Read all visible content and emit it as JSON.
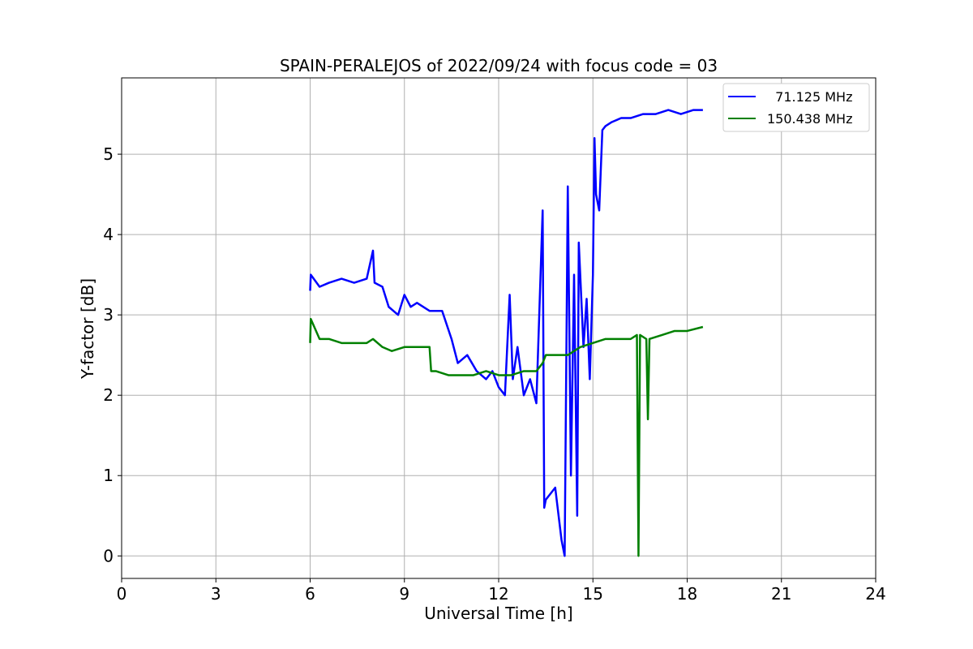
{
  "chart_data": {
    "type": "line",
    "title": "SPAIN-PERALEJOS of 2022/09/24 with focus code = 03",
    "xlabel": "Universal Time [h]",
    "ylabel": "Y-factor [dB]",
    "xlim": [
      0,
      24
    ],
    "ylim": [
      -0.28,
      5.95
    ],
    "xticks": [
      0,
      3,
      6,
      9,
      12,
      15,
      18,
      21,
      24
    ],
    "yticks": [
      0,
      1,
      2,
      3,
      4,
      5
    ],
    "grid": true,
    "legend_position": "top-right",
    "series": [
      {
        "name": "  71.125 MHz",
        "color": "#0000ff",
        "x": [
          6.0,
          6.02,
          6.3,
          6.6,
          7.0,
          7.4,
          7.8,
          8.0,
          8.05,
          8.3,
          8.5,
          8.8,
          9.0,
          9.2,
          9.4,
          9.8,
          10.2,
          10.5,
          10.7,
          11.0,
          11.3,
          11.6,
          11.8,
          12.0,
          12.2,
          12.35,
          12.45,
          12.6,
          12.8,
          13.0,
          13.2,
          13.4,
          13.45,
          13.5,
          13.6,
          13.8,
          14.0,
          14.1,
          14.2,
          14.3,
          14.4,
          14.5,
          14.55,
          14.7,
          14.8,
          14.9,
          15.0,
          15.05,
          15.1,
          15.2,
          15.3,
          15.4,
          15.6,
          15.9,
          16.2,
          16.6,
          17.0,
          17.4,
          17.8,
          18.2,
          18.5
        ],
        "y": [
          3.3,
          3.5,
          3.35,
          3.4,
          3.45,
          3.4,
          3.45,
          3.8,
          3.4,
          3.35,
          3.1,
          3.0,
          3.25,
          3.1,
          3.15,
          3.05,
          3.05,
          2.7,
          2.4,
          2.5,
          2.3,
          2.2,
          2.3,
          2.1,
          2.0,
          3.25,
          2.2,
          2.6,
          2.0,
          2.2,
          1.9,
          4.3,
          0.6,
          0.7,
          0.75,
          0.85,
          0.2,
          0.0,
          4.6,
          1.0,
          3.5,
          0.5,
          3.9,
          2.6,
          3.2,
          2.2,
          3.5,
          5.2,
          4.5,
          4.3,
          5.3,
          5.35,
          5.4,
          5.45,
          5.45,
          5.5,
          5.5,
          5.55,
          5.5,
          5.55,
          5.55
        ]
      },
      {
        "name": "150.438 MHz",
        "color": "#008000",
        "x": [
          6.0,
          6.02,
          6.3,
          6.6,
          7.0,
          7.4,
          7.8,
          8.0,
          8.3,
          8.6,
          9.0,
          9.3,
          9.6,
          9.8,
          9.85,
          10.0,
          10.4,
          10.8,
          11.2,
          11.6,
          12.0,
          12.4,
          12.8,
          13.2,
          13.4,
          13.5,
          13.8,
          14.2,
          14.6,
          15.0,
          15.4,
          15.8,
          16.2,
          16.4,
          16.45,
          16.5,
          16.7,
          16.75,
          16.8,
          17.2,
          17.6,
          18.0,
          18.5
        ],
        "y": [
          2.65,
          2.95,
          2.7,
          2.7,
          2.65,
          2.65,
          2.65,
          2.7,
          2.6,
          2.55,
          2.6,
          2.6,
          2.6,
          2.6,
          2.3,
          2.3,
          2.25,
          2.25,
          2.25,
          2.3,
          2.25,
          2.25,
          2.3,
          2.3,
          2.4,
          2.5,
          2.5,
          2.5,
          2.6,
          2.65,
          2.7,
          2.7,
          2.7,
          2.75,
          0.0,
          2.75,
          2.7,
          1.7,
          2.7,
          2.75,
          2.8,
          2.8,
          2.85
        ]
      }
    ]
  }
}
